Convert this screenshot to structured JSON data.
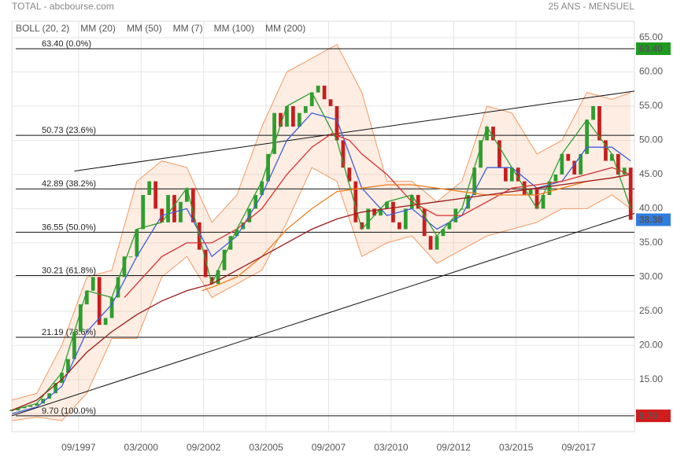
{
  "chart_data": {
    "type": "candlestick",
    "title": "TOTAL - abcbourse.com",
    "subtitle": "25 ANS - MENSUEL",
    "up_color": "#2e9e2e",
    "down_color": "#c81e1e",
    "xlim": [
      1995.0,
      2019.9
    ],
    "ylim": [
      7.5,
      66.5
    ],
    "grid": true,
    "xticks": [
      {
        "value": 1997.67,
        "label": "09/1997"
      },
      {
        "value": 2000.17,
        "label": "03/2000"
      },
      {
        "value": 2002.67,
        "label": "09/2002"
      },
      {
        "value": 2005.17,
        "label": "03/2005"
      },
      {
        "value": 2007.67,
        "label": "09/2007"
      },
      {
        "value": 2010.17,
        "label": "03/2010"
      },
      {
        "value": 2012.67,
        "label": "09/2012"
      },
      {
        "value": 2015.17,
        "label": "03/2015"
      },
      {
        "value": 2017.67,
        "label": "09/2017"
      }
    ],
    "yticks": [
      {
        "value": 10,
        "label": "10.00"
      },
      {
        "value": 15,
        "label": "15.00"
      },
      {
        "value": 20,
        "label": "20.00"
      },
      {
        "value": 25,
        "label": "25.00"
      },
      {
        "value": 30,
        "label": "30.00"
      },
      {
        "value": 35,
        "label": "35.00"
      },
      {
        "value": 40,
        "label": "40.00"
      },
      {
        "value": 45,
        "label": "45.00"
      },
      {
        "value": 50,
        "label": "50.00"
      },
      {
        "value": 55,
        "label": "55.00"
      },
      {
        "value": 60,
        "label": "60.00"
      },
      {
        "value": 65,
        "label": "65.00"
      }
    ],
    "x": [
      1995.0,
      1995.25,
      1995.5,
      1995.75,
      1996.0,
      1996.25,
      1996.5,
      1996.75,
      1997.0,
      1997.25,
      1997.5,
      1997.75,
      1998.0,
      1998.25,
      1998.5,
      1998.75,
      1999.0,
      1999.25,
      1999.5,
      1999.75,
      2000.0,
      2000.25,
      2000.5,
      2000.75,
      2001.0,
      2001.25,
      2001.5,
      2001.75,
      2002.0,
      2002.25,
      2002.5,
      2002.75,
      2003.0,
      2003.25,
      2003.5,
      2003.75,
      2004.0,
      2004.25,
      2004.5,
      2004.75,
      2005.0,
      2005.25,
      2005.5,
      2005.75,
      2006.0,
      2006.25,
      2006.5,
      2006.75,
      2007.0,
      2007.25,
      2007.5,
      2007.75,
      2008.0,
      2008.25,
      2008.5,
      2008.75,
      2009.0,
      2009.25,
      2009.5,
      2009.75,
      2010.0,
      2010.25,
      2010.5,
      2010.75,
      2011.0,
      2011.25,
      2011.5,
      2011.75,
      2012.0,
      2012.25,
      2012.5,
      2012.75,
      2013.0,
      2013.25,
      2013.5,
      2013.75,
      2014.0,
      2014.25,
      2014.5,
      2014.75,
      2015.0,
      2015.25,
      2015.5,
      2015.75,
      2016.0,
      2016.25,
      2016.5,
      2016.75,
      2017.0,
      2017.25,
      2017.5,
      2017.75,
      2018.0,
      2018.25,
      2018.5,
      2018.75,
      2019.0,
      2019.25,
      2019.5,
      2019.75
    ],
    "values": [
      10.5,
      10.8,
      11,
      11.2,
      11.5,
      12.2,
      13,
      14.5,
      16,
      18,
      22,
      26,
      28,
      30,
      23,
      24,
      27,
      30,
      33,
      33,
      37,
      42,
      44,
      40,
      38,
      42,
      38,
      41,
      43,
      38,
      34,
      30,
      29,
      31,
      34,
      36,
      37,
      38,
      40,
      42,
      44,
      48,
      54,
      52,
      55,
      52,
      54,
      55,
      57,
      58,
      56,
      55,
      50,
      46,
      44,
      38,
      37,
      40,
      39,
      40,
      41,
      38,
      37,
      40,
      42,
      40,
      36,
      34,
      36,
      37,
      38,
      40,
      40,
      42,
      46,
      50,
      52,
      50,
      46,
      44,
      46,
      44,
      42,
      43,
      40,
      42,
      44,
      45,
      48,
      47,
      45,
      48,
      53,
      55,
      50,
      47,
      48,
      45,
      46,
      38.38
    ],
    "bollinger": {
      "name": "BOLL (20, 2)",
      "color": "#f29a62",
      "x": [
        1995,
        1996,
        1997,
        1998,
        1999,
        2000,
        2001,
        2002,
        2003,
        2004,
        2005,
        2006,
        2007,
        2008,
        2009,
        2010,
        2011,
        2012,
        2013,
        2014,
        2015,
        2016,
        2017,
        2018,
        2019,
        2019.75
      ],
      "upper": [
        12,
        13,
        20,
        30,
        31,
        44,
        47,
        46,
        38,
        42,
        52,
        60,
        62,
        64,
        57,
        44,
        44,
        41,
        44,
        55,
        54,
        48,
        50,
        57,
        56,
        57
      ],
      "lower": [
        9,
        9.5,
        9,
        13,
        21,
        21,
        30,
        33,
        27,
        29,
        31,
        38,
        46,
        44,
        33,
        35,
        36,
        32,
        34,
        36,
        37,
        38,
        40,
        40,
        42,
        40
      ]
    },
    "series": [
      {
        "name": "MM (20)",
        "color": "#3d5fd9",
        "x": [
          1995,
          1996,
          1997,
          1998,
          1999,
          2000,
          2001,
          2002,
          2003,
          2004,
          2005,
          2006,
          2007,
          2008,
          2009,
          2010,
          2011,
          2012,
          2013,
          2014,
          2015,
          2016,
          2017,
          2018,
          2019,
          2019.75
        ],
        "values": [
          10,
          11,
          14,
          22,
          26,
          33,
          39,
          40,
          33,
          36,
          42,
          50,
          54,
          53,
          43,
          39,
          40,
          37,
          39,
          46,
          46,
          43,
          44,
          49,
          49,
          47
        ]
      },
      {
        "name": "MM (50)",
        "color": "#d93030",
        "x": [
          1999.5,
          2000,
          2001,
          2002,
          2003,
          2004,
          2005,
          2006,
          2007,
          2007.8,
          2008.5,
          2009,
          2010,
          2011,
          2012,
          2013,
          2014,
          2015,
          2016,
          2017,
          2018,
          2019,
          2019.75
        ],
        "values": [
          27,
          29,
          33,
          35,
          35,
          37,
          40,
          45,
          49,
          51,
          50,
          48,
          45,
          41,
          39,
          39,
          41,
          43,
          43.5,
          44,
          45,
          46,
          45
        ]
      },
      {
        "name": "MM (7)",
        "color": "#2e9e2e",
        "x": [
          1995,
          1996,
          1997,
          1998,
          1999,
          2000,
          2001,
          2002,
          2003,
          2004,
          2005,
          2006,
          2007,
          2008,
          2009,
          2010,
          2011,
          2012,
          2013,
          2014,
          2015,
          2016,
          2017,
          2018,
          2019,
          2019.75
        ],
        "values": [
          10.5,
          11.5,
          16,
          28,
          27,
          37,
          38,
          43,
          29,
          37,
          44,
          55,
          57,
          50,
          37,
          41,
          42,
          36,
          40,
          52,
          46,
          40,
          48,
          53,
          48,
          40
        ]
      },
      {
        "name": "MM (100)",
        "color": "#f0801e",
        "x": [
          2002.6,
          2003,
          2004,
          2005,
          2006,
          2007,
          2008,
          2009,
          2010,
          2011,
          2012,
          2013,
          2014,
          2015,
          2016,
          2017,
          2018,
          2019,
          2019.75
        ],
        "values": [
          28,
          28.5,
          30,
          33,
          37,
          40,
          42.5,
          43,
          43.5,
          43.5,
          43,
          42.5,
          42,
          42,
          42,
          43,
          44,
          44.5,
          45
        ]
      },
      {
        "name": "MM (200)",
        "color": "#9b1b1b",
        "x": [
          1995,
          1996,
          1997,
          1998,
          1999,
          2000,
          2001,
          2002,
          2003,
          2004,
          2005,
          2006,
          2007,
          2008,
          2009,
          2010,
          2011,
          2012,
          2013,
          2014,
          2015,
          2016,
          2017,
          2018,
          2019,
          2019.75
        ],
        "values": [
          10.5,
          12,
          15,
          19,
          22,
          24.5,
          26.5,
          28,
          29,
          31,
          33,
          35,
          37,
          38.5,
          39.5,
          40,
          40.5,
          41,
          41.5,
          42,
          42.5,
          43,
          43.5,
          44,
          44.5,
          45
        ]
      }
    ],
    "fibonacci": [
      {
        "value": 63.4,
        "label": "63.40  (0.0%)"
      },
      {
        "value": 50.73,
        "label": "50.73  (23.6%)"
      },
      {
        "value": 42.89,
        "label": "42.89  (38.2%)"
      },
      {
        "value": 36.55,
        "label": "36.55  (50.0%)"
      },
      {
        "value": 30.21,
        "label": "30.21  (61.8%)"
      },
      {
        "value": 21.19,
        "label": "21.19  (78.6%)"
      },
      {
        "value": 9.7,
        "label": "9.70  (100.0%)"
      }
    ],
    "trendlines": [
      {
        "x": [
          1997.5,
          2019.9
        ],
        "values": [
          45.5,
          57.2
        ]
      },
      {
        "x": [
          1995.0,
          2019.9
        ],
        "values": [
          9.7,
          39.3
        ]
      }
    ],
    "price_tags": [
      {
        "value": 63.4,
        "label": "63.40",
        "color": "#1e9b1e"
      },
      {
        "value": 38.38,
        "label": "38.38",
        "color": "#2f7de1"
      },
      {
        "value": 9.7,
        "label": "9.70",
        "color": "#d01c1c"
      }
    ]
  }
}
